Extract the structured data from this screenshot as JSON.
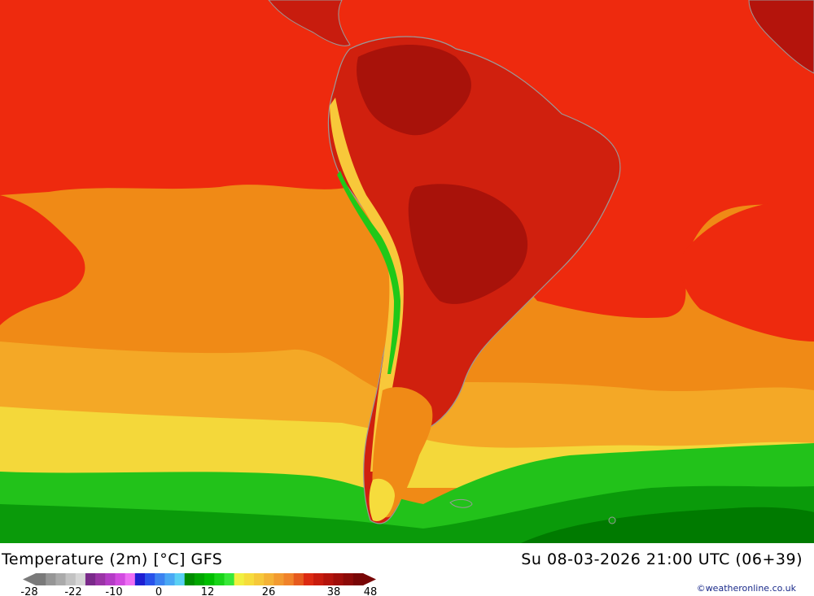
{
  "map": {
    "title": "Temperature (2m) [°C] GFS",
    "timestamp": "Su 08-03-2026 21:00 UTC (06+39)",
    "credit": "©weatheronline.co.uk"
  },
  "legend": {
    "tick_labels": [
      "-28",
      "-22",
      "-10",
      "0",
      "12",
      "26",
      "38",
      "48"
    ],
    "colors": [
      "#7a7a7a",
      "#969696",
      "#aaaaaa",
      "#c2c2c2",
      "#d6d6d6",
      "#7a2a8a",
      "#9a34a6",
      "#b43cc6",
      "#d24be0",
      "#ee6ef4",
      "#1e1ed2",
      "#2852ea",
      "#3c82f0",
      "#4aa8f4",
      "#5ad0f4",
      "#008c00",
      "#00a600",
      "#00be00",
      "#18d418",
      "#38e838",
      "#f0f040",
      "#f6dc3c",
      "#f6c83a",
      "#f4b236",
      "#f29a30",
      "#f0822a",
      "#e65a1e",
      "#dc2a12",
      "#c81c0e",
      "#b4140c",
      "#a00e0a",
      "#8c0a08",
      "#780606"
    ]
  }
}
